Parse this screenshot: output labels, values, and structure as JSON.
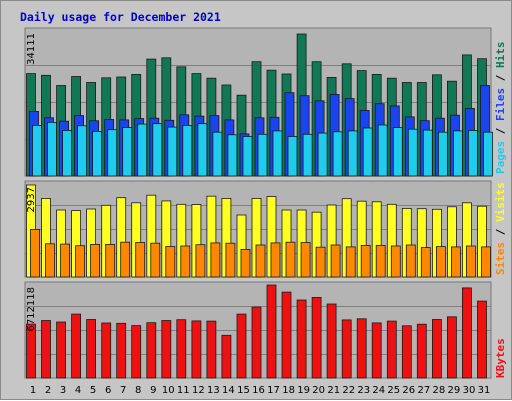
{
  "title": "Daily usage for December 2021",
  "colors": {
    "hits": "#117755",
    "files": "#1a44ee",
    "pages": "#20ccee",
    "visits": "#ffff22",
    "sites": "#ff8800",
    "kbytes": "#ee1111",
    "title": "#0000cc",
    "weekend_label": "#117755",
    "panel_bg": "#b4b4b4",
    "frame_bg": "#c6c6c6"
  },
  "side_labels": {
    "hits_panel": [
      "Pages",
      "Files",
      "Hits"
    ],
    "visits_panel": [
      "Sites",
      "Visits"
    ],
    "kbytes_panel": [
      "KBytes"
    ]
  },
  "axis_max_labels": {
    "hits": "34111",
    "visits": "2937",
    "kbytes": "6712118"
  },
  "chart_data": {
    "type": "bar",
    "title": "Daily usage for December 2021",
    "categories": [
      "1",
      "2",
      "3",
      "4",
      "5",
      "6",
      "7",
      "8",
      "9",
      "10",
      "11",
      "12",
      "13",
      "14",
      "15",
      "16",
      "17",
      "18",
      "19",
      "20",
      "21",
      "22",
      "23",
      "24",
      "25",
      "26",
      "27",
      "28",
      "29",
      "30",
      "31"
    ],
    "weekend_days": [
      "4",
      "5",
      "11",
      "12",
      "18",
      "19",
      "25",
      "26"
    ],
    "series": [
      {
        "name": "Hits",
        "axis_max": 34111,
        "values": [
          24100,
          23700,
          21300,
          23400,
          22000,
          23100,
          23300,
          23900,
          27500,
          27800,
          25700,
          24100,
          23000,
          21400,
          19000,
          26900,
          24900,
          24000,
          33400,
          26900,
          23200,
          26400,
          24800,
          23900,
          23000,
          22000,
          22000,
          23800,
          22300,
          28500,
          27600
        ]
      },
      {
        "name": "Files",
        "axis_max": 34111,
        "values": [
          15200,
          13700,
          12900,
          14200,
          13000,
          13300,
          13200,
          13500,
          13600,
          13100,
          14400,
          14100,
          14200,
          13200,
          9900,
          13700,
          13800,
          19600,
          18900,
          17700,
          19200,
          18200,
          15400,
          17000,
          16500,
          13900,
          13000,
          13600,
          14300,
          15900,
          21300
        ]
      },
      {
        "name": "Pages",
        "axis_max": 34111,
        "values": [
          11900,
          12600,
          10700,
          11800,
          10500,
          10900,
          11400,
          12200,
          12300,
          11500,
          11900,
          12300,
          10300,
          9700,
          9300,
          9800,
          10600,
          9300,
          9800,
          10100,
          10400,
          10600,
          11300,
          12000,
          11400,
          11000,
          10800,
          10300,
          10600,
          10700,
          10300
        ]
      },
      {
        "name": "Visits",
        "axis_max": 2937,
        "values": [
          2937,
          2510,
          2140,
          2120,
          2170,
          2290,
          2530,
          2370,
          2610,
          2430,
          2320,
          2310,
          2580,
          2510,
          1980,
          2510,
          2570,
          2140,
          2140,
          2070,
          2300,
          2500,
          2420,
          2400,
          2320,
          2190,
          2180,
          2160,
          2240,
          2370,
          2260
        ]
      },
      {
        "name": "Sites",
        "axis_max": 2937,
        "values": [
          1520,
          1060,
          1050,
          1000,
          1040,
          1040,
          1110,
          1100,
          1080,
          970,
          990,
          1030,
          1090,
          1080,
          880,
          1020,
          1090,
          1110,
          1100,
          950,
          1020,
          960,
          1010,
          1010,
          990,
          1020,
          940,
          970,
          960,
          990,
          960
        ]
      },
      {
        "name": "KBytes",
        "axis_max": 6712118,
        "values": [
          3890000,
          4150000,
          4040000,
          4610000,
          4220000,
          3970000,
          3950000,
          3780000,
          3990000,
          4150000,
          4210000,
          4120000,
          4110000,
          3080000,
          4610000,
          5120000,
          6712118,
          6200000,
          5630000,
          5820000,
          5340000,
          4190000,
          4270000,
          3980000,
          4110000,
          3770000,
          3880000,
          4220000,
          4420000,
          6500000,
          5550000
        ]
      }
    ]
  }
}
